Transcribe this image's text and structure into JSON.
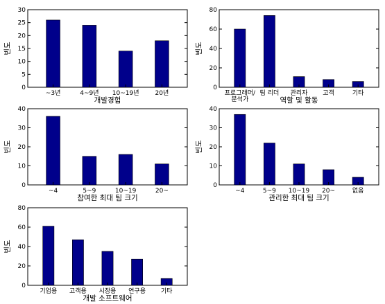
{
  "chart_data": [
    {
      "type": "bar",
      "xlabel": "개발경험",
      "ylabel": "빈도",
      "ylim": [
        0,
        30
      ],
      "yticks": [
        0,
        5,
        10,
        15,
        20,
        25,
        30
      ],
      "categories": [
        "~3년",
        "4~9년",
        "10~19년",
        "20년"
      ],
      "values": [
        26,
        24,
        14,
        18
      ],
      "bar_color": "#00008b"
    },
    {
      "type": "bar",
      "xlabel": "역할 및 활동",
      "ylabel": "빈도",
      "ylim": [
        0,
        80
      ],
      "yticks": [
        0,
        20,
        40,
        60,
        80
      ],
      "categories": [
        "프로그래머/\n분석가",
        "팀 리더",
        "관리자",
        "고객",
        "기타"
      ],
      "values": [
        60,
        74,
        11,
        8,
        6
      ],
      "bar_color": "#00008b"
    },
    {
      "type": "bar",
      "xlabel": "참여한 최대 팀 크기",
      "ylabel": "빈도",
      "ylim": [
        0,
        40
      ],
      "yticks": [
        0,
        10,
        20,
        30,
        40
      ],
      "categories": [
        "~4",
        "5~9",
        "10~19",
        "20~"
      ],
      "values": [
        36,
        15,
        16,
        11
      ],
      "bar_color": "#00008b"
    },
    {
      "type": "bar",
      "xlabel": "관리한 최대 팀 크기",
      "ylabel": "빈도",
      "ylim": [
        0,
        40
      ],
      "yticks": [
        0,
        10,
        20,
        30,
        40
      ],
      "categories": [
        "~4",
        "5~9",
        "10~19",
        "20~",
        "없음"
      ],
      "values": [
        37,
        22,
        11,
        8,
        4
      ],
      "bar_color": "#00008b"
    },
    {
      "type": "bar",
      "xlabel": "개발 소프트웨어",
      "ylabel": "빈도",
      "ylim": [
        0,
        80
      ],
      "yticks": [
        0,
        20,
        40,
        60,
        80
      ],
      "categories": [
        "기업용",
        "고객용",
        "시장용",
        "연구용",
        "기타"
      ],
      "values": [
        61,
        47,
        35,
        27,
        7
      ],
      "bar_color": "#00008b"
    }
  ]
}
